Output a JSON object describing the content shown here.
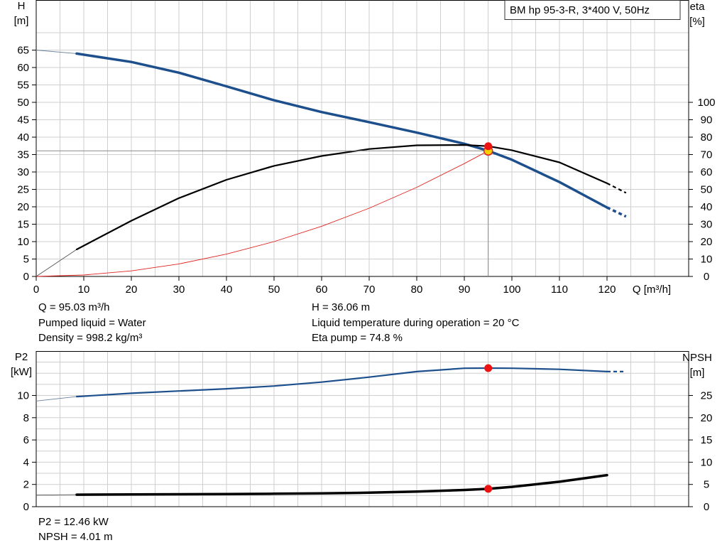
{
  "chart_data": [
    {
      "type": "line",
      "title": "BM hp 95-3-R, 3*400 V, 50Hz",
      "x_unit_label": "Q [m³/h]",
      "left_axis_label": {
        "name": "H",
        "unit": "[m]"
      },
      "right_axis_label": {
        "name": "eta",
        "unit": "[%]"
      },
      "xlim": [
        0,
        130
      ],
      "xticks": [
        0,
        10,
        20,
        30,
        40,
        50,
        60,
        70,
        80,
        90,
        100,
        110,
        120
      ],
      "ylim_left": [
        0,
        75
      ],
      "yticks_left": [
        0,
        5,
        10,
        15,
        20,
        25,
        30,
        35,
        40,
        45,
        50,
        55,
        60,
        65
      ],
      "ylim_right": [
        0,
        150
      ],
      "yticks_right": [
        0,
        10,
        20,
        30,
        40,
        50,
        60,
        70,
        80,
        90,
        100
      ],
      "grid": true,
      "series": [
        {
          "axis": "left",
          "color": "#1c4f8c",
          "width": 3.5,
          "thin_lead": [
            [
              0,
              65
            ],
            [
              8.5,
              64
            ]
          ],
          "points": [
            [
              8.5,
              64
            ],
            [
              20,
              61.6
            ],
            [
              30,
              58.5
            ],
            [
              40,
              54.6
            ],
            [
              50,
              50.6
            ],
            [
              60,
              47.2
            ],
            [
              70,
              44.3
            ],
            [
              80,
              41.3
            ],
            [
              90,
              38.1
            ],
            [
              95,
              36.1
            ],
            [
              100,
              33.5
            ],
            [
              110,
              27.1
            ],
            [
              120,
              19.8
            ]
          ],
          "dashed": [
            [
              120,
              19.8
            ],
            [
              124,
              17.2
            ]
          ]
        },
        {
          "axis": "right",
          "color": "#000000",
          "width": 2.2,
          "thin_lead": [
            [
              0,
              0
            ],
            [
              8.5,
              15.5
            ]
          ],
          "points": [
            [
              8.5,
              15.5
            ],
            [
              20,
              32
            ],
            [
              30,
              45
            ],
            [
              40,
              55.5
            ],
            [
              50,
              63.5
            ],
            [
              60,
              69.2
            ],
            [
              70,
              73.2
            ],
            [
              80,
              75.3
            ],
            [
              90,
              75.5
            ],
            [
              95,
              74.8
            ],
            [
              100,
              72.5
            ],
            [
              110,
              65.5
            ],
            [
              120,
              53.5
            ]
          ],
          "dashed": [
            [
              120,
              53.5
            ],
            [
              124,
              48
            ]
          ]
        },
        {
          "axis": "left",
          "color": "#e0231f",
          "width": 0.9,
          "points": [
            [
              0,
              0
            ],
            [
              10,
              0.4
            ],
            [
              20,
              1.6
            ],
            [
              30,
              3.6
            ],
            [
              40,
              6.4
            ],
            [
              50,
              10.0
            ],
            [
              60,
              14.4
            ],
            [
              70,
              19.6
            ],
            [
              80,
              25.6
            ],
            [
              90,
              32.4
            ],
            [
              95,
              36.06
            ]
          ]
        }
      ],
      "operating_point": {
        "q": 95.03,
        "h": 36.06,
        "eta": 74.8
      },
      "info_left": [
        "Q = 95.03 m³/h",
        "Pumped liquid = Water",
        "Density = 998.2 kg/m³"
      ],
      "info_right": [
        "H = 36.06 m",
        "Liquid temperature during operation = 20 °C",
        "Eta pump = 74.8 %"
      ]
    },
    {
      "type": "line",
      "left_axis_label": {
        "name": "P2",
        "unit": "[kW]"
      },
      "right_axis_label": {
        "name": "NPSH",
        "unit": "[m]"
      },
      "xlim": [
        0,
        130
      ],
      "ylim_left": [
        0,
        13.5
      ],
      "yticks_left": [
        0,
        2,
        4,
        6,
        8,
        10
      ],
      "ylim_right": [
        0,
        33.75
      ],
      "yticks_right": [
        0,
        5,
        10,
        15,
        20,
        25
      ],
      "grid": true,
      "series": [
        {
          "axis": "left",
          "color": "#1c4f8c",
          "width": 2.2,
          "thin_lead": [
            [
              0,
              9.5
            ],
            [
              8.5,
              9.9
            ]
          ],
          "points": [
            [
              8.5,
              9.9
            ],
            [
              20,
              10.2
            ],
            [
              30,
              10.4
            ],
            [
              40,
              10.6
            ],
            [
              50,
              10.85
            ],
            [
              60,
              11.2
            ],
            [
              70,
              11.65
            ],
            [
              80,
              12.15
            ],
            [
              90,
              12.45
            ],
            [
              95,
              12.46
            ],
            [
              100,
              12.45
            ],
            [
              110,
              12.35
            ],
            [
              120,
              12.15
            ]
          ],
          "dashed": [
            [
              120,
              12.15
            ],
            [
              124,
              12.15
            ]
          ]
        },
        {
          "axis": "right",
          "color": "#000000",
          "width": 3.5,
          "thin_lead": [
            [
              0,
              2.6
            ],
            [
              8.5,
              2.7
            ]
          ],
          "points": [
            [
              8.5,
              2.7
            ],
            [
              20,
              2.75
            ],
            [
              30,
              2.8
            ],
            [
              40,
              2.85
            ],
            [
              50,
              2.9
            ],
            [
              60,
              3.0
            ],
            [
              70,
              3.15
            ],
            [
              80,
              3.4
            ],
            [
              90,
              3.75
            ],
            [
              95,
              4.01
            ],
            [
              100,
              4.45
            ],
            [
              110,
              5.6
            ],
            [
              120,
              7.1
            ]
          ]
        }
      ],
      "operating_point": {
        "q": 95.03,
        "p2": 12.46,
        "npsh": 4.01
      },
      "info_left": [
        "P2 = 12.46 kW",
        "NPSH = 4.01 m"
      ]
    }
  ]
}
